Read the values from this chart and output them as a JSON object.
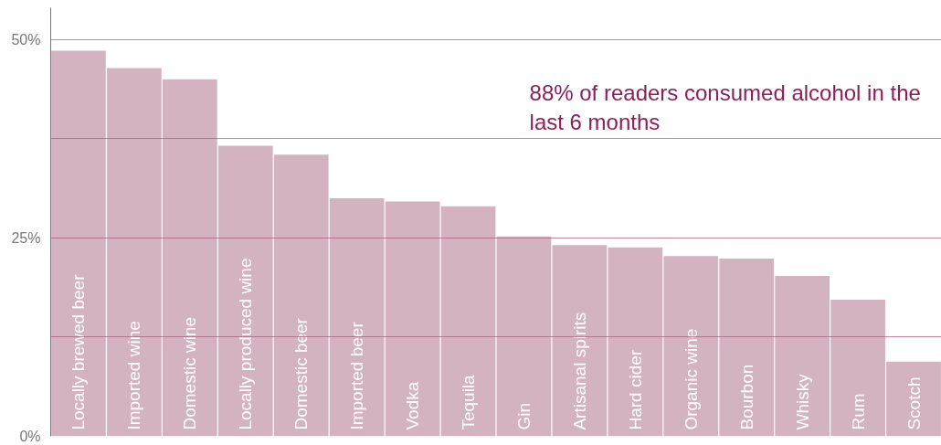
{
  "chart_data": {
    "type": "bar",
    "categories": [
      "Locally brewed beer",
      "Imported wine",
      "Domestic wine",
      "Locally produced wine",
      "Domestic beer",
      "Imported beer",
      "Vodka",
      "Tequila",
      "Gin",
      "Artisanal spirits",
      "Hard cider",
      "Organic wine",
      "Bourbon",
      "Whisky",
      "Rum",
      "Scotch"
    ],
    "values": [
      48.6,
      46.4,
      45.0,
      36.6,
      35.5,
      30.0,
      29.6,
      29.0,
      25.2,
      24.1,
      23.8,
      22.7,
      22.4,
      20.2,
      17.2,
      9.4
    ],
    "color": "#d4b3c0",
    "ylim": [
      0,
      54
    ],
    "yticks": [
      {
        "value": 0,
        "label": "0%"
      },
      {
        "value": 12.5,
        "label": null
      },
      {
        "value": 25,
        "label": "25%"
      },
      {
        "value": 37.5,
        "label": null
      },
      {
        "value": 50,
        "label": "50%"
      }
    ],
    "grid": "y",
    "annotations": [
      "88% of readers consumed alcohol in the\nlast 6 months"
    ]
  }
}
